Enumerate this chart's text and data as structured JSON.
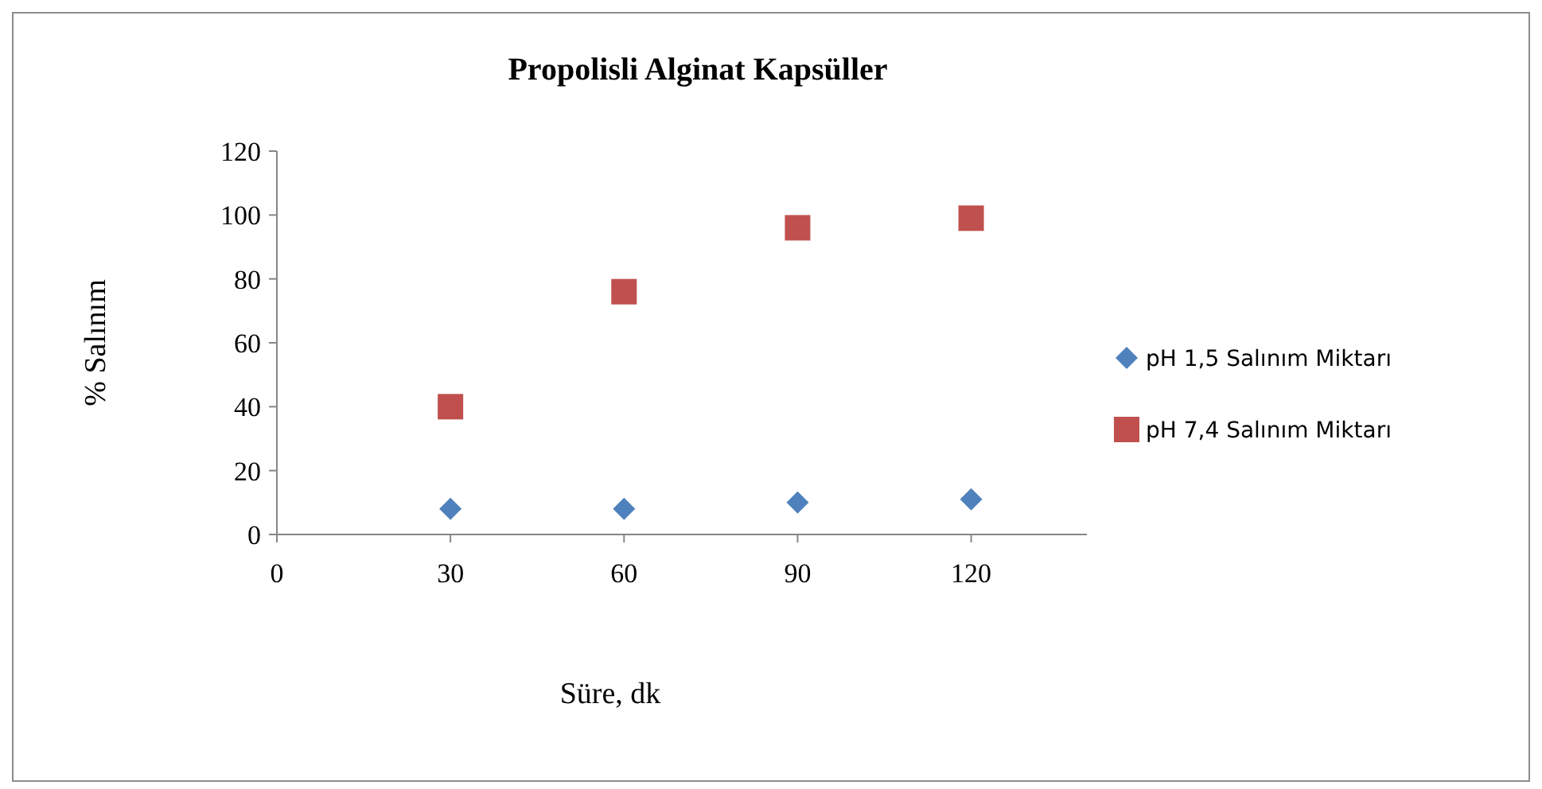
{
  "chart_data": {
    "type": "scatter",
    "title": "Propolisli Alginat Kapsüller",
    "xlabel": "Süre, dk",
    "ylabel": "% Salınım",
    "x": [
      30,
      60,
      90,
      120
    ],
    "series": [
      {
        "name": "pH 1,5 Salınım  Miktarı",
        "color": "#4f81bd",
        "marker": "diamond",
        "values": [
          8,
          8,
          10,
          11
        ]
      },
      {
        "name": "pH 7,4 Salınım  Miktarı",
        "color": "#c0504d",
        "marker": "square",
        "values": [
          40,
          76,
          96,
          99
        ]
      }
    ],
    "xlim": [
      0,
      140
    ],
    "xticks": [
      0,
      30,
      60,
      90,
      120
    ],
    "ylim": [
      0,
      120
    ],
    "yticks": [
      0,
      20,
      40,
      60,
      80,
      100,
      120
    ],
    "grid": false,
    "legend": "right"
  }
}
